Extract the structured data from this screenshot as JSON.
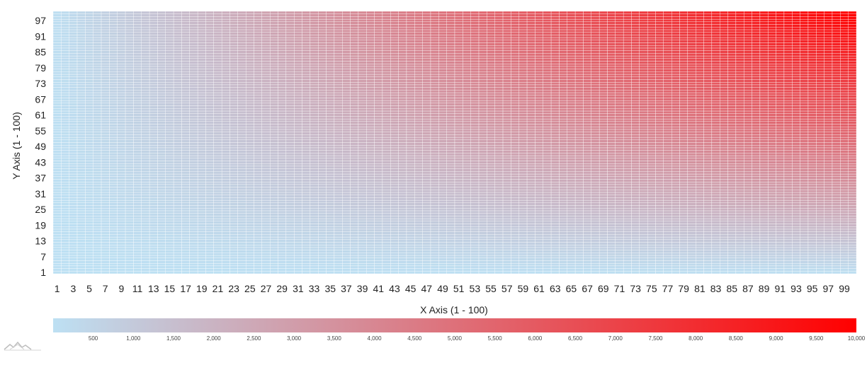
{
  "chart_data": {
    "type": "heatmap",
    "title": "",
    "xlabel": "X Axis (1 - 100)",
    "ylabel": "Y Axis (1 - 100)",
    "x_range": [
      1,
      100
    ],
    "y_range": [
      1,
      100
    ],
    "value_function": "x * y",
    "x_tick_labels": [
      "1",
      "3",
      "5",
      "7",
      "9",
      "11",
      "13",
      "15",
      "17",
      "19",
      "21",
      "23",
      "25",
      "27",
      "29",
      "31",
      "33",
      "35",
      "37",
      "39",
      "41",
      "43",
      "45",
      "47",
      "49",
      "51",
      "53",
      "55",
      "57",
      "59",
      "61",
      "63",
      "65",
      "67",
      "69",
      "71",
      "73",
      "75",
      "77",
      "79",
      "81",
      "83",
      "85",
      "87",
      "89",
      "91",
      "93",
      "95",
      "97",
      "99"
    ],
    "y_tick_labels": [
      "1",
      "7",
      "13",
      "19",
      "25",
      "31",
      "37",
      "43",
      "49",
      "55",
      "61",
      "67",
      "73",
      "79",
      "85",
      "91",
      "97"
    ],
    "color_scale": {
      "min": 1,
      "max": 10000,
      "min_color": "#bde0f3",
      "max_color": "#ff0000",
      "tick_labels": [
        "500",
        "1,000",
        "1,500",
        "2,000",
        "2,500",
        "3,000",
        "3,500",
        "4,000",
        "4,500",
        "5,000",
        "5,500",
        "6,000",
        "6,500",
        "7,000",
        "7,500",
        "8,000",
        "8,500",
        "9,000",
        "9,500",
        "10,000"
      ],
      "tick_values": [
        500,
        1000,
        1500,
        2000,
        2500,
        3000,
        3500,
        4000,
        4500,
        5000,
        5500,
        6000,
        6500,
        7000,
        7500,
        8000,
        8500,
        9000,
        9500,
        10000
      ]
    },
    "grid": true,
    "legend_placement": "bottom"
  },
  "colors": {
    "cell_border": "#ffffff"
  },
  "logo_icon": "mountain-logo-icon"
}
